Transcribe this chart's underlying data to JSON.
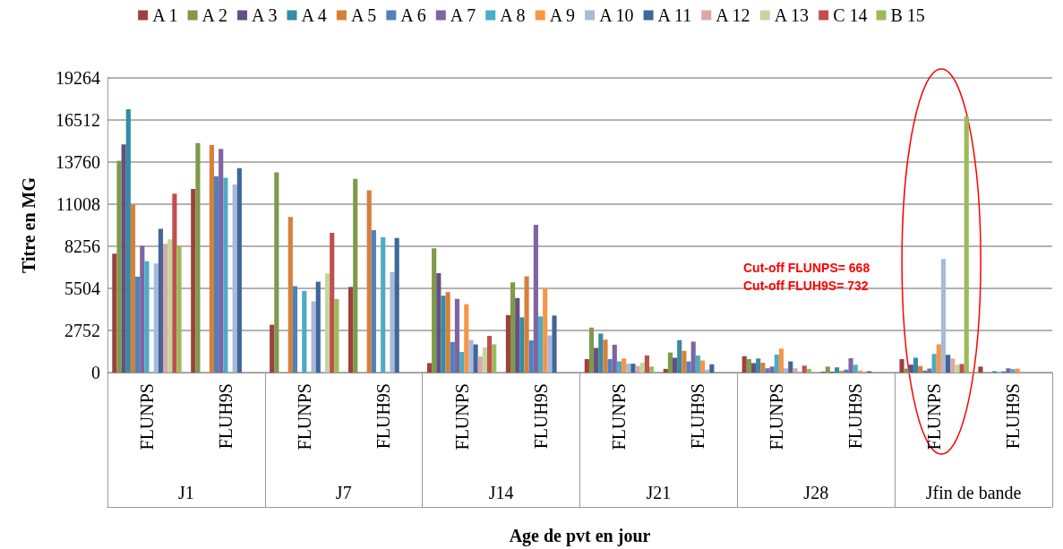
{
  "chart_data": {
    "type": "bar",
    "xlabel": "Age de pvt en jour",
    "ylabel": "Titre en MG",
    "categories": [
      "FLUNPS",
      "FLUH9S",
      "FLUNPS",
      "FLUH9S",
      "FLUNPS",
      "FLUH9S",
      "FLUNPS",
      "FLUH9S",
      "FLUNPS",
      "FLUH9S",
      "FLUNPS",
      "FLUH9S"
    ],
    "series": [
      {
        "name": "A 1",
        "color": "#9e413e",
        "values": [
          7770,
          12000,
          3130,
          5600,
          620,
          3760,
          880,
          240,
          1070,
          60,
          880,
          390
        ]
      },
      {
        "name": "A 2",
        "color": "#7f9a48",
        "values": [
          13850,
          15010,
          13090,
          12660,
          8130,
          5900,
          2940,
          1310,
          880,
          390,
          260,
          null
        ]
      },
      {
        "name": "A 3",
        "color": "#664f82",
        "values": [
          14920,
          null,
          null,
          null,
          6500,
          4870,
          1610,
          970,
          620,
          60,
          520,
          null
        ]
      },
      {
        "name": "A 4",
        "color": "#358ca3",
        "values": [
          17220,
          null,
          null,
          null,
          5020,
          3610,
          2550,
          2120,
          920,
          340,
          970,
          90
        ]
      },
      {
        "name": "A 5",
        "color": "#d6803a",
        "values": [
          10990,
          14870,
          10170,
          11910,
          5260,
          6290,
          2150,
          1420,
          640,
          110,
          430,
          null
        ]
      },
      {
        "name": "A 6",
        "color": "#4f81bd",
        "values": [
          6270,
          12840,
          5650,
          9310,
          2000,
          2100,
          880,
          730,
          280,
          190,
          130,
          80
        ]
      },
      {
        "name": "A 7",
        "color": "#8064a2",
        "values": [
          8290,
          14620,
          null,
          null,
          4810,
          9660,
          1820,
          2020,
          390,
          940,
          260,
          280
        ]
      },
      {
        "name": "A 8",
        "color": "#4bacc6",
        "values": [
          7280,
          12730,
          5340,
          8860,
          1350,
          3670,
          730,
          1120,
          1180,
          510,
          1220,
          230
        ]
      },
      {
        "name": "A 9",
        "color": "#f79646",
        "values": [
          null,
          null,
          null,
          null,
          4470,
          5490,
          920,
          790,
          1570,
          130,
          1850,
          260
        ]
      },
      {
        "name": "A 10",
        "color": "#a9b9d8",
        "values": [
          7130,
          12300,
          4660,
          6570,
          2130,
          2430,
          580,
          190,
          280,
          null,
          7430,
          null
        ]
      },
      {
        "name": "A 11",
        "color": "#3f679a",
        "values": [
          9400,
          13370,
          5940,
          8800,
          1840,
          3730,
          580,
          540,
          730,
          90,
          1160,
          null
        ]
      },
      {
        "name": "A 12",
        "color": "#d9a8a7",
        "values": [
          8410,
          null,
          null,
          null,
          1050,
          null,
          430,
          null,
          280,
          null,
          920,
          null
        ]
      },
      {
        "name": "A 13",
        "color": "#c3d6a0",
        "values": [
          8710,
          null,
          6480,
          null,
          1650,
          null,
          640,
          null,
          null,
          null,
          520,
          null
        ]
      },
      {
        "name": "C 14",
        "color": "#c0504d",
        "values": [
          11700,
          null,
          9140,
          null,
          2400,
          null,
          1120,
          null,
          450,
          null,
          560,
          null
        ]
      },
      {
        "name": "B 15",
        "color": "#9bbb59",
        "values": [
          8290,
          null,
          4810,
          null,
          1850,
          null,
          390,
          null,
          240,
          null,
          16740,
          null
        ]
      }
    ],
    "ylim": [
      0,
      19264
    ],
    "yticks": [
      0,
      2752,
      5504,
      8256,
      11008,
      13760,
      16512,
      19264
    ],
    "grid": "y",
    "legend": "top",
    "annotations": [
      "Cut-off FLUNPS= 668",
      "Cut-off FLUH9S= 732",
      {
        "text": "J1"
      },
      {
        "text": "J7"
      },
      {
        "text": "J14"
      },
      {
        "text": "J21"
      },
      {
        "text": "J28"
      },
      {
        "text": "Jfin de bande"
      }
    ]
  }
}
